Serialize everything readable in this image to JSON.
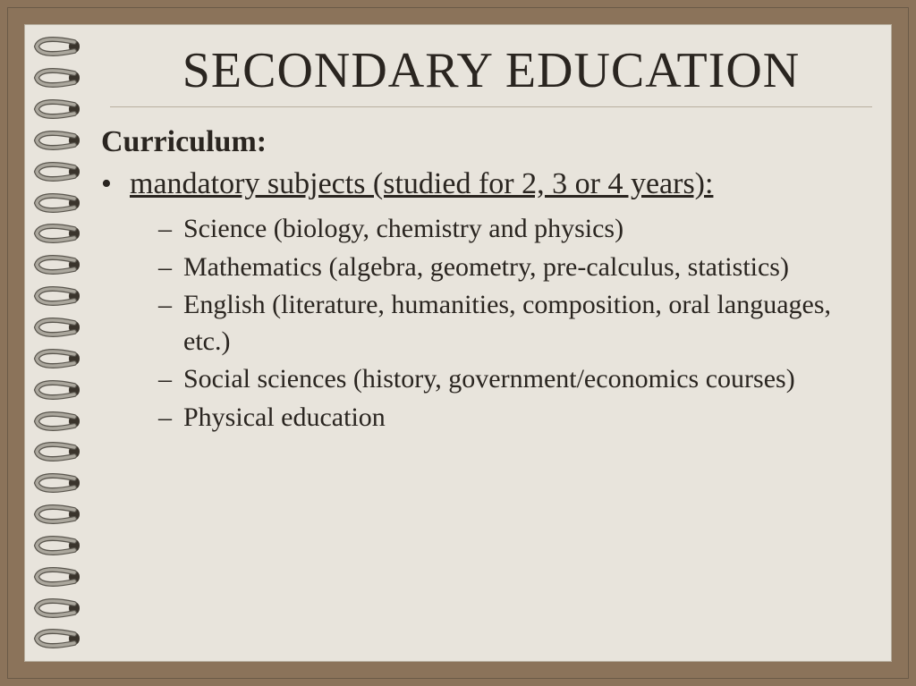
{
  "colors": {
    "frame": "#8b735a",
    "page": "#e8e4dc",
    "text": "#2a2520",
    "rule": "#b8afa0",
    "ring_metal": "#aba79d",
    "ring_shadow": "#5a564e",
    "hole_dark": "#3a342c"
  },
  "typography": {
    "title_fontsize": 56,
    "section_fontsize": 34,
    "bullet_fontsize": 34,
    "sub_fontsize": 30,
    "font_family": "Georgia"
  },
  "slide": {
    "title": "SECONDARY EDUCATION",
    "section_label": "Curriculum:",
    "bullet_main": "mandatory subjects (studied for 2, 3 or 4 years):",
    "sub_items": [
      "Science (biology, chemistry and physics)",
      "Mathematics (algebra, geometry, pre-calculus, statistics)",
      "English (literature, humanities, composition, oral languages, etc.)",
      "Social sciences (history, government/economics courses)",
      "Physical education"
    ]
  },
  "binding": {
    "ring_count": 20
  }
}
